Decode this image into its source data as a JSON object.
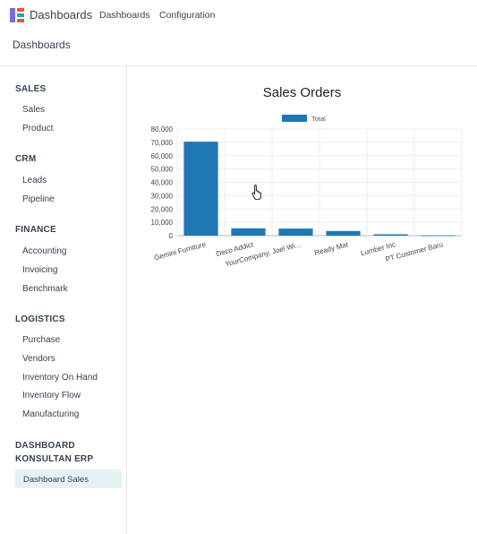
{
  "topbar": {
    "brand": "Dashboards",
    "menu": [
      {
        "label": "Dashboards"
      },
      {
        "label": "Configuration"
      }
    ]
  },
  "breadcrumb": "Dashboards",
  "sidebar": {
    "sections": [
      {
        "title": "SALES",
        "items": [
          "Sales",
          "Product"
        ]
      },
      {
        "title": "CRM",
        "items": [
          "Leads",
          "Pipeline"
        ]
      },
      {
        "title": "FINANCE",
        "items": [
          "Accounting",
          "Invoicing",
          "Benchmark"
        ]
      },
      {
        "title": "LOGISTICS",
        "items": [
          "Purchase",
          "Vendors",
          "Inventory On Hand",
          "Inventory Flow",
          "Manufacturing"
        ]
      },
      {
        "title": "DASHBOARD KONSULTAN ERP",
        "items": [
          "Dashboard Sales"
        ]
      }
    ],
    "active_item": "Dashboard Sales"
  },
  "chart_data": {
    "type": "bar",
    "title": "Sales Orders",
    "categories": [
      "Gemini Furniture",
      "Deco Addict",
      "YourCompany, Joel Wi...",
      "Ready Mat",
      "Lumber Inc",
      "PT Customer Baru"
    ],
    "series": [
      {
        "name": "Total",
        "values": [
          70500,
          5500,
          5300,
          3500,
          1000,
          200
        ]
      }
    ],
    "ylim": [
      0,
      80000
    ],
    "yticks": [
      0,
      10000,
      20000,
      30000,
      40000,
      50000,
      60000,
      70000,
      80000
    ],
    "ytick_labels": [
      "0",
      "10,000",
      "20,000",
      "30,000",
      "40,000",
      "50,000",
      "60,000",
      "70,000",
      "80,000"
    ],
    "legend_position": "top",
    "grid": true,
    "bar_color": "#1f77b4"
  }
}
